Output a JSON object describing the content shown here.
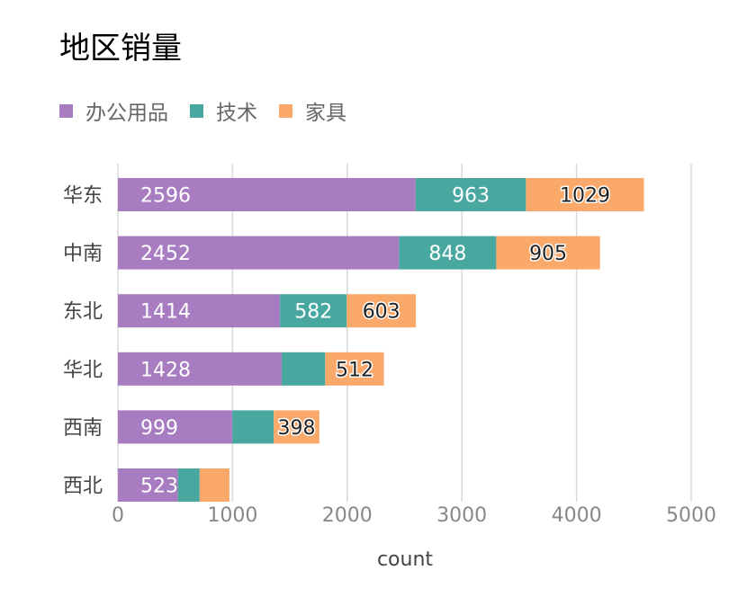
{
  "chart_data": {
    "type": "bar",
    "orientation": "horizontal",
    "stacked": true,
    "title": "地区销量",
    "xlabel": "count",
    "ylabel": "",
    "xlim": [
      0,
      5000
    ],
    "x_ticks": [
      "0",
      "1000",
      "2000",
      "3000",
      "4000",
      "5000"
    ],
    "grid": true,
    "legend_position": "top-left",
    "categories": [
      "华东",
      "中南",
      "东北",
      "华北",
      "西南",
      "西北"
    ],
    "series": [
      {
        "name": "办公用品",
        "color": "#a77cc0",
        "values": [
          2596,
          2452,
          1414,
          1428,
          999,
          523
        ]
      },
      {
        "name": "技术",
        "color": "#48a8a0",
        "values": [
          963,
          848,
          582,
          380,
          360,
          190
        ]
      },
      {
        "name": "家具",
        "color": "#fba96b",
        "values": [
          1029,
          905,
          603,
          512,
          398,
          260
        ]
      }
    ],
    "data_labels": [
      [
        "2596",
        "963",
        "1029"
      ],
      [
        "2452",
        "848",
        "905"
      ],
      [
        "1414",
        "582",
        "603"
      ],
      [
        "1428",
        "",
        "512"
      ],
      [
        "999",
        "",
        "398"
      ],
      [
        "523",
        "",
        ""
      ]
    ]
  }
}
